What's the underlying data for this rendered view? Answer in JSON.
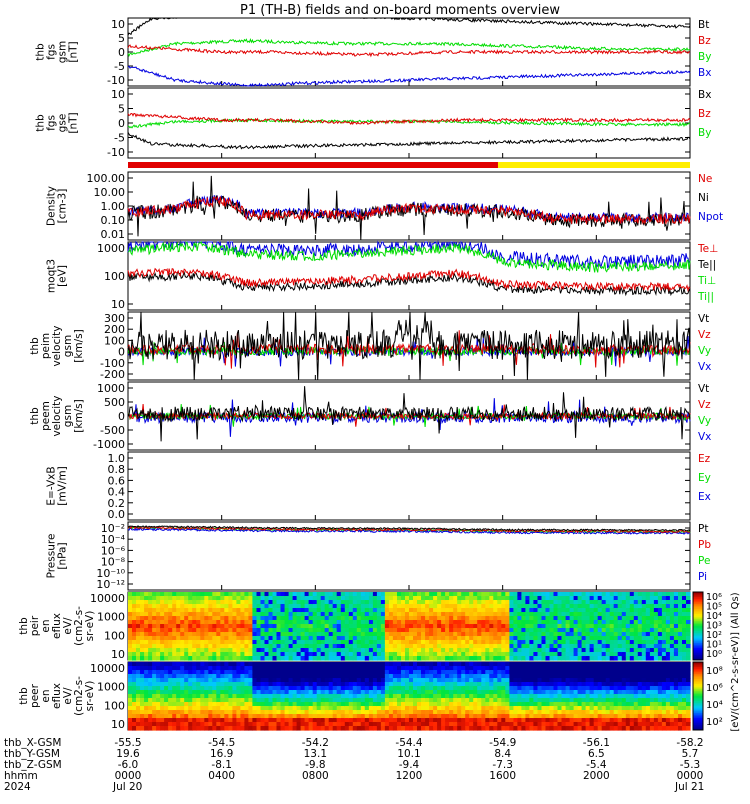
{
  "title": "P1 (TH-B) fields and on-board moments overview",
  "colors": {
    "black": "#000000",
    "red": "#e00000",
    "green": "#00dd00",
    "blue": "#0000e0",
    "yellow": "#ffee00"
  },
  "panels": [
    {
      "ylabel": [
        "thb",
        "fgs",
        "gsm",
        "[nT]"
      ],
      "yticks": [
        "10",
        "5",
        "0",
        "-5",
        "-10"
      ],
      "legend": [
        {
          "t": "Bt",
          "c": "black"
        },
        {
          "t": "Bz",
          "c": "red"
        },
        {
          "t": "By",
          "c": "green"
        },
        {
          "t": "Bx",
          "c": "blue"
        }
      ]
    },
    {
      "ylabel": [
        "thb",
        "fgs",
        "gse",
        "[nT]"
      ],
      "yticks": [
        "10",
        "5",
        "0",
        "-5",
        "-10"
      ],
      "legend": [
        {
          "t": "Bx",
          "c": "black"
        },
        {
          "t": "Bz",
          "c": "red"
        },
        {
          "t": "By",
          "c": "green"
        }
      ]
    },
    {
      "ylabel": [
        "Density",
        "[cm-3]"
      ],
      "yticks": [
        "100.00",
        "10.00",
        "1.00",
        "0.10",
        "0.01"
      ],
      "legend": [
        {
          "t": "Ne",
          "c": "red"
        },
        {
          "t": "Ni",
          "c": "black"
        },
        {
          "t": "Npot",
          "c": "blue"
        }
      ]
    },
    {
      "ylabel": [
        "moqt3",
        "[eV]"
      ],
      "yticks": [
        "1000",
        "100",
        "10"
      ],
      "legend": [
        {
          "t": "Te⊥",
          "c": "red"
        },
        {
          "t": "Te||",
          "c": "black"
        },
        {
          "t": "Ti⊥",
          "c": "green"
        },
        {
          "t": "Ti||",
          "c": "green"
        }
      ]
    },
    {
      "ylabel": [
        "thb",
        "peim",
        "velocity",
        "gsm",
        "[km/s]"
      ],
      "yticks": [
        "300",
        "200",
        "100",
        "0",
        "-100",
        "-200"
      ],
      "legend": [
        {
          "t": "Vt",
          "c": "black"
        },
        {
          "t": "Vz",
          "c": "red"
        },
        {
          "t": "Vy",
          "c": "green"
        },
        {
          "t": "Vx",
          "c": "blue"
        }
      ]
    },
    {
      "ylabel": [
        "thb",
        "peem",
        "velocity",
        "gsm",
        "[km/s]"
      ],
      "yticks": [
        "1000",
        "500",
        "0",
        "-500",
        "-1000"
      ],
      "legend": [
        {
          "t": "Vt",
          "c": "black"
        },
        {
          "t": "Vz",
          "c": "red"
        },
        {
          "t": "Vy",
          "c": "green"
        },
        {
          "t": "Vx",
          "c": "blue"
        }
      ]
    },
    {
      "ylabel": [
        "E=-VxB",
        "[mV/m]"
      ],
      "yticks": [
        "1.0",
        "0.8",
        "0.6",
        "0.4",
        "0.2",
        "0.0"
      ],
      "legend": [
        {
          "t": "Ez",
          "c": "red"
        },
        {
          "t": "Ey",
          "c": "green"
        },
        {
          "t": "Ex",
          "c": "blue"
        }
      ]
    },
    {
      "ylabel": [
        "Pressure",
        "[nPa]"
      ],
      "yticks": [
        "10⁻²",
        "10⁻⁴",
        "10⁻⁶",
        "10⁻⁸",
        "10⁻¹⁰",
        "10⁻¹²"
      ],
      "legend": [
        {
          "t": "Pt",
          "c": "black"
        },
        {
          "t": "Pb",
          "c": "red"
        },
        {
          "t": "Pe",
          "c": "green"
        },
        {
          "t": "Pi",
          "c": "blue"
        }
      ]
    },
    {
      "ylabel": [
        "thb",
        "peir",
        "en",
        "eflux",
        "eV/",
        "(cm2-s-",
        "sr-eV)"
      ],
      "yticks": [
        "10000",
        "1000",
        "100",
        "10"
      ]
    },
    {
      "ylabel": [
        "thb",
        "peer",
        "en",
        "eflux",
        "eV/",
        "(cm2-s-",
        "sr-eV)"
      ],
      "yticks": [
        "10000",
        "1000",
        "100",
        "10"
      ]
    }
  ],
  "colorbar1": {
    "ticks": [
      "10⁶",
      "10⁵",
      "10⁴",
      "10³",
      "10²",
      "10¹",
      "10⁰"
    ]
  },
  "colorbar2": {
    "ticks": [
      "10⁸",
      "10⁶",
      "10⁴",
      "10²"
    ]
  },
  "colorbar_label": "[eV/(cm^2-s-sr-eV)] (All Qs)",
  "xaxis": {
    "rows": [
      {
        "label": "thb_X-GSM",
        "values": [
          "-55.5",
          "-54.5",
          "-54.2",
          "-54.4",
          "-54.9",
          "-56.1",
          "-58.2"
        ]
      },
      {
        "label": "thb_Y-GSM",
        "values": [
          "19.6",
          "16.9",
          "13.1",
          "10.1",
          "8.4",
          "6.5",
          "5.7"
        ]
      },
      {
        "label": "thb_Z-GSM",
        "values": [
          "-6.0",
          "-8.1",
          "-9.8",
          "-9.4",
          "-7.3",
          "-5.4",
          "-5.3"
        ]
      },
      {
        "label": "hhmm",
        "values": [
          "0000",
          "0400",
          "0800",
          "1200",
          "1600",
          "2000",
          "0000"
        ]
      },
      {
        "label": "2024",
        "values": [
          "Jul 20",
          "",
          "",
          "",
          "",
          "",
          "Jul 21"
        ]
      }
    ]
  },
  "chart_data": {
    "type": "line",
    "title": "P1 (TH-B) fields and on-board moments overview",
    "x_hours": [
      0,
      4,
      8,
      12,
      16,
      20,
      24
    ],
    "x_tick_labels": [
      "0000",
      "0400",
      "0800",
      "1200",
      "1600",
      "2000",
      "0000"
    ],
    "mode_bar": [
      {
        "from_hr": 0,
        "to_hr": 15.8,
        "color": "red"
      },
      {
        "from_hr": 15.8,
        "to_hr": 24,
        "color": "yellow"
      }
    ],
    "series_approx": {
      "fgs_gsm_Bt": [
        [
          0,
          6
        ],
        [
          1,
          12
        ],
        [
          3,
          13
        ],
        [
          5,
          14
        ],
        [
          8,
          13
        ],
        [
          12,
          12
        ],
        [
          16,
          11
        ],
        [
          20,
          10
        ],
        [
          24,
          9
        ]
      ],
      "fgs_gsm_Bz": [
        [
          0,
          2
        ],
        [
          2,
          1
        ],
        [
          4,
          0
        ],
        [
          6,
          0
        ],
        [
          10,
          -1
        ],
        [
          14,
          0
        ],
        [
          18,
          0
        ],
        [
          22,
          0
        ],
        [
          24,
          0
        ]
      ],
      "fgs_gsm_By": [
        [
          0,
          -1
        ],
        [
          2,
          3
        ],
        [
          5,
          4
        ],
        [
          9,
          3
        ],
        [
          13,
          3
        ],
        [
          17,
          2
        ],
        [
          21,
          1
        ],
        [
          24,
          1
        ]
      ],
      "fgs_gsm_Bx": [
        [
          0,
          -5
        ],
        [
          2,
          -10
        ],
        [
          5,
          -12
        ],
        [
          8,
          -11
        ],
        [
          12,
          -10
        ],
        [
          16,
          -9
        ],
        [
          20,
          -8
        ],
        [
          24,
          -7
        ]
      ],
      "density_Ni": [
        [
          0,
          0.3
        ],
        [
          2,
          0.5
        ],
        [
          4,
          2
        ],
        [
          5,
          0.2
        ],
        [
          10,
          0.2
        ],
        [
          12,
          0.6
        ],
        [
          16,
          0.4
        ],
        [
          18,
          0.1
        ],
        [
          24,
          0.1
        ]
      ],
      "temp_Ti": [
        [
          0,
          800
        ],
        [
          3,
          1200
        ],
        [
          5,
          600
        ],
        [
          8,
          500
        ],
        [
          11,
          700
        ],
        [
          14,
          1000
        ],
        [
          16,
          300
        ],
        [
          20,
          200
        ],
        [
          24,
          250
        ]
      ],
      "temp_Te": [
        [
          0,
          90
        ],
        [
          3,
          100
        ],
        [
          5,
          40
        ],
        [
          8,
          45
        ],
        [
          11,
          60
        ],
        [
          14,
          90
        ],
        [
          16,
          35
        ],
        [
          20,
          30
        ],
        [
          24,
          30
        ]
      ],
      "pressure_Pt": [
        [
          0,
          0.02
        ],
        [
          6,
          0.01
        ],
        [
          12,
          0.008
        ],
        [
          16,
          0.005
        ],
        [
          24,
          0.004
        ]
      ]
    }
  }
}
